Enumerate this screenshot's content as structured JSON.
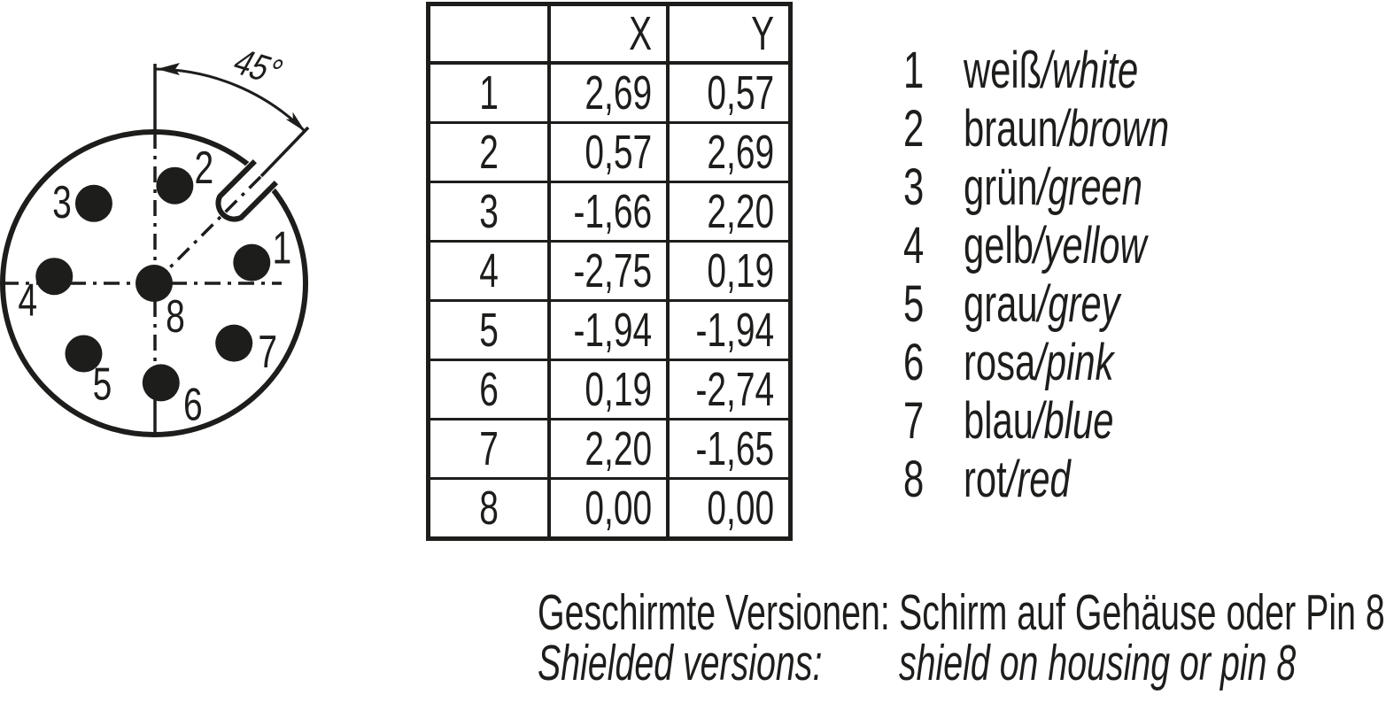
{
  "diagram": {
    "angle_label": "45°",
    "pins": [
      {
        "n": "1",
        "x_mm": 2.69,
        "y_mm": 0.57
      },
      {
        "n": "2",
        "x_mm": 0.57,
        "y_mm": 2.69
      },
      {
        "n": "3",
        "x_mm": -1.66,
        "y_mm": 2.2
      },
      {
        "n": "4",
        "x_mm": -2.75,
        "y_mm": 0.19
      },
      {
        "n": "5",
        "x_mm": -1.94,
        "y_mm": -1.94
      },
      {
        "n": "6",
        "x_mm": 0.19,
        "y_mm": -2.74
      },
      {
        "n": "7",
        "x_mm": 2.2,
        "y_mm": -1.65
      },
      {
        "n": "8",
        "x_mm": 0.0,
        "y_mm": 0.0
      }
    ]
  },
  "table": {
    "headers": [
      "",
      "X",
      "Y"
    ],
    "rows": [
      [
        "1",
        "2,69",
        "0,57"
      ],
      [
        "2",
        "0,57",
        "2,69"
      ],
      [
        "3",
        "-1,66",
        "2,20"
      ],
      [
        "4",
        "-2,75",
        "0,19"
      ],
      [
        "5",
        "-1,94",
        "-1,94"
      ],
      [
        "6",
        "0,19",
        "-2,74"
      ],
      [
        "7",
        "2,20",
        "-1,65"
      ],
      [
        "8",
        "0,00",
        "0,00"
      ]
    ]
  },
  "legend": {
    "items": [
      {
        "n": "1",
        "de": "weiß",
        "en": "white"
      },
      {
        "n": "2",
        "de": "braun",
        "en": "brown"
      },
      {
        "n": "3",
        "de": "grün",
        "en": "green"
      },
      {
        "n": "4",
        "de": "gelb",
        "en": "yellow"
      },
      {
        "n": "5",
        "de": "grau",
        "en": "grey"
      },
      {
        "n": "6",
        "de": "rosa",
        "en": "pink"
      },
      {
        "n": "7",
        "de": "blau",
        "en": "blue"
      },
      {
        "n": "8",
        "de": "rot",
        "en": "red"
      }
    ]
  },
  "footer": {
    "de_label": "Geschirmte Versionen:",
    "de_text": "Schirm auf Gehäuse oder Pin 8",
    "en_label": "Shielded versions:",
    "en_text": "shield on housing or pin 8"
  },
  "colors": {
    "ink": "#1d1d1b"
  }
}
